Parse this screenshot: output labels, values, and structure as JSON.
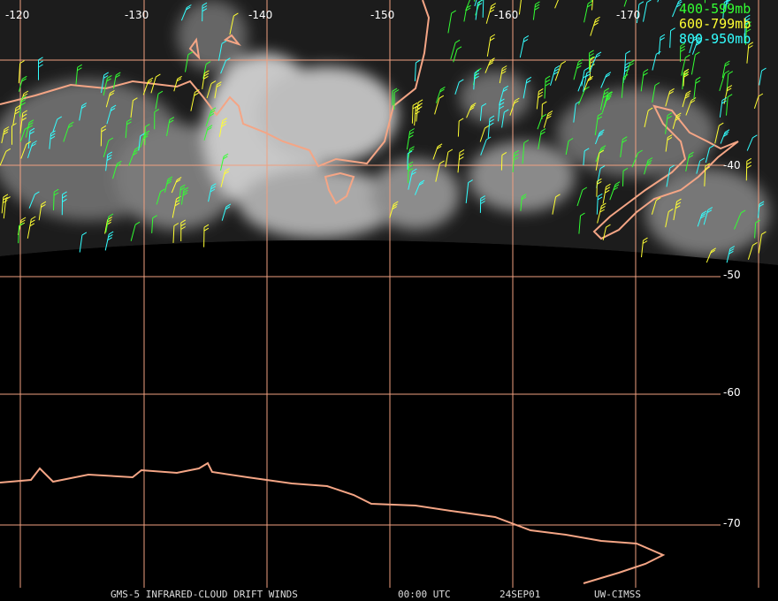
{
  "lon_labels": [
    "-120",
    "-130",
    "-140",
    "-150",
    "-160",
    "-170"
  ],
  "lat_labels": [
    "-40",
    "-50",
    "-60",
    "-70"
  ],
  "legend": [
    {
      "label": "400-599mb",
      "color": "#33ff33"
    },
    {
      "label": "600-799mb",
      "color": "#ffff33"
    },
    {
      "label": "800-950mb",
      "color": "#33ffff"
    }
  ],
  "footer": [
    "GMS-5 INFRARED-CLOUD DRIFT WINDS",
    "00:00 UTC",
    "24SEP01",
    "UW-CIMSS"
  ]
}
